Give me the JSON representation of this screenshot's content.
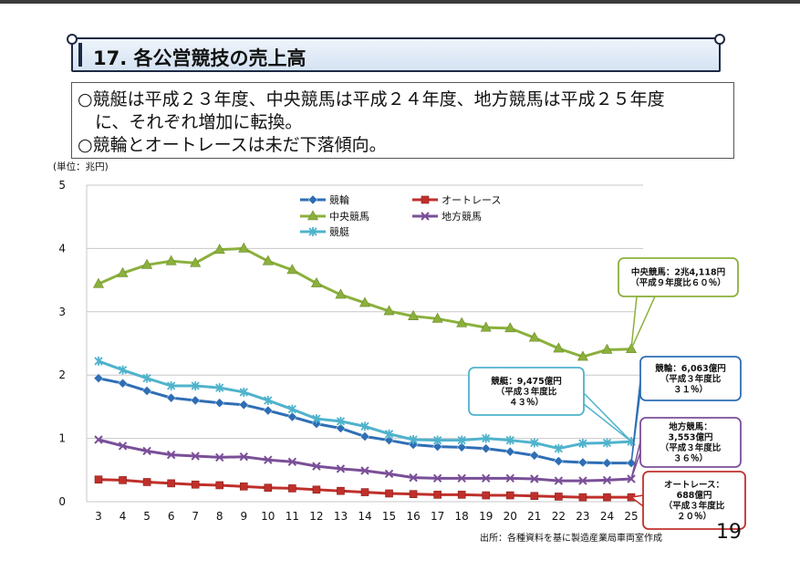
{
  "title": "17. 各公営競技の売上高",
  "summary": [
    "○競艇は平成２３年度、中央競馬は平成２４年度、地方競馬は平成２５年度",
    "　に、それぞれ増加に転換。",
    "○競輪とオートレースは未だ下落傾向。"
  ],
  "unit_label": "(単位：兆円)",
  "source": "出所：各種資料を基に製造産業局車両室作成",
  "page_number": "19",
  "chart_data": {
    "type": "line",
    "xlabel": "",
    "ylabel": "",
    "x": [
      "3",
      "4",
      "5",
      "6",
      "7",
      "8",
      "9",
      "10",
      "11",
      "12",
      "13",
      "14",
      "15",
      "16",
      "17",
      "18",
      "19",
      "20",
      "21",
      "22",
      "23",
      "24",
      "25"
    ],
    "ylim": [
      0,
      5
    ],
    "yticks": [
      "0",
      "1",
      "2",
      "3",
      "4",
      "5"
    ],
    "grid": true,
    "legend_position": "top",
    "series": [
      {
        "name": "競輪",
        "color": "#2e6eb5",
        "marker": "diamond",
        "values": [
          1.95,
          1.87,
          1.75,
          1.64,
          1.6,
          1.56,
          1.53,
          1.44,
          1.34,
          1.23,
          1.16,
          1.03,
          0.97,
          0.9,
          0.87,
          0.86,
          0.84,
          0.79,
          0.73,
          0.64,
          0.62,
          0.61,
          0.61
        ]
      },
      {
        "name": "オートレース",
        "color": "#c0302b",
        "marker": "square",
        "values": [
          0.35,
          0.34,
          0.31,
          0.29,
          0.27,
          0.26,
          0.24,
          0.22,
          0.21,
          0.19,
          0.17,
          0.15,
          0.13,
          0.12,
          0.11,
          0.11,
          0.1,
          0.1,
          0.09,
          0.08,
          0.07,
          0.07,
          0.07
        ]
      },
      {
        "name": "中央競馬",
        "color": "#8bb03c",
        "marker": "triangle",
        "values": [
          3.44,
          3.61,
          3.74,
          3.8,
          3.77,
          3.98,
          4.0,
          3.8,
          3.66,
          3.45,
          3.27,
          3.14,
          3.01,
          2.93,
          2.89,
          2.82,
          2.75,
          2.74,
          2.59,
          2.42,
          2.29,
          2.4,
          2.41
        ]
      },
      {
        "name": "地方競馬",
        "color": "#7a4f98",
        "marker": "x",
        "values": [
          0.98,
          0.88,
          0.8,
          0.74,
          0.72,
          0.7,
          0.71,
          0.66,
          0.63,
          0.56,
          0.52,
          0.49,
          0.44,
          0.38,
          0.37,
          0.37,
          0.37,
          0.37,
          0.36,
          0.33,
          0.33,
          0.34,
          0.36
        ]
      },
      {
        "name": "競艇",
        "color": "#4fb3cc",
        "marker": "asterisk",
        "values": [
          2.22,
          2.08,
          1.95,
          1.83,
          1.83,
          1.8,
          1.73,
          1.6,
          1.46,
          1.31,
          1.27,
          1.19,
          1.07,
          0.98,
          0.97,
          0.97,
          1.0,
          0.97,
          0.93,
          0.84,
          0.92,
          0.93,
          0.95
        ]
      }
    ],
    "annotations": [
      {
        "series": "中央競馬",
        "border_color": "#8bb03c",
        "lines": [
          "中央競馬：2兆4,118円",
          "（平成９年度比６０％）"
        ]
      },
      {
        "series": "競艇",
        "border_color": "#4fb3cc",
        "lines": [
          "競艇：9,475億円",
          "（平成３年度比",
          "４３％）"
        ]
      },
      {
        "series": "競輪",
        "border_color": "#2e6eb5",
        "lines": [
          "競輪：6,063億円",
          "（平成３年度比",
          "３１％）"
        ]
      },
      {
        "series": "地方競馬",
        "border_color": "#7a4f98",
        "lines": [
          "地方競馬：",
          "3,553億円",
          "（平成３年度比",
          "３６％）"
        ]
      },
      {
        "series": "オートレース",
        "border_color": "#c0302b",
        "lines": [
          "オートレース：",
          "688億円",
          "（平成３年度比",
          "２０％）"
        ]
      }
    ]
  }
}
